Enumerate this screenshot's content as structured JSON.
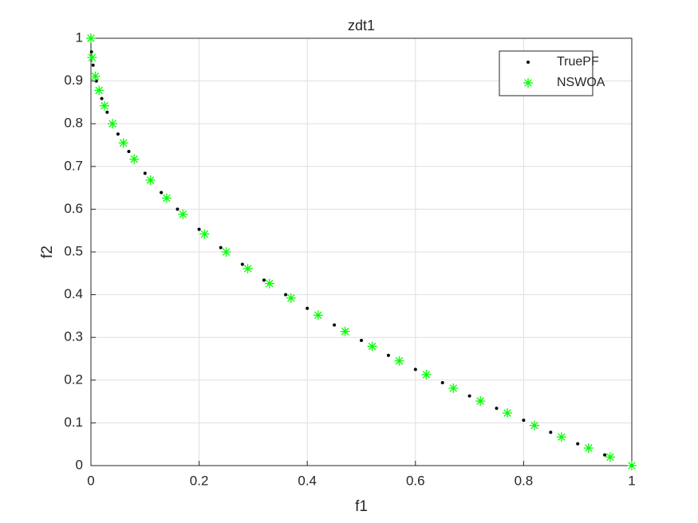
{
  "chart_data": {
    "type": "scatter",
    "title": "zdt1",
    "x_label": "f1",
    "y_label": "f2",
    "xlim": [
      0,
      1
    ],
    "ylim": [
      0,
      1
    ],
    "xticks": [
      0,
      0.2,
      0.4,
      0.6,
      0.8,
      1
    ],
    "yticks": [
      0,
      0.1,
      0.2,
      0.3,
      0.4,
      0.5,
      0.6,
      0.7,
      0.8,
      0.9,
      1
    ],
    "grid": true,
    "legend": "northeast",
    "series": [
      {
        "name": "TruePF",
        "color": "#000000",
        "marker": "dot",
        "x": [
          0.001,
          0.004,
          0.01,
          0.02,
          0.03,
          0.05,
          0.07,
          0.1,
          0.13,
          0.16,
          0.2,
          0.24,
          0.28,
          0.32,
          0.36,
          0.4,
          0.45,
          0.5,
          0.55,
          0.6,
          0.65,
          0.7,
          0.75,
          0.8,
          0.85,
          0.9,
          0.95,
          1
        ],
        "values": [
          0.968,
          0.937,
          0.9,
          0.859,
          0.827,
          0.776,
          0.735,
          0.684,
          0.639,
          0.6,
          0.553,
          0.51,
          0.471,
          0.434,
          0.4,
          0.368,
          0.329,
          0.293,
          0.258,
          0.225,
          0.194,
          0.163,
          0.134,
          0.106,
          0.078,
          0.051,
          0.025,
          0
        ]
      },
      {
        "name": "NSWOA",
        "color": "#00ff00",
        "marker": "asterisk",
        "x": [
          0,
          0.002,
          0.008,
          0.015,
          0.025,
          0.04,
          0.06,
          0.08,
          0.11,
          0.14,
          0.17,
          0.21,
          0.25,
          0.29,
          0.33,
          0.37,
          0.42,
          0.47,
          0.52,
          0.57,
          0.62,
          0.67,
          0.72,
          0.77,
          0.82,
          0.87,
          0.92,
          0.96,
          1
        ],
        "values": [
          1,
          0.955,
          0.911,
          0.878,
          0.842,
          0.8,
          0.755,
          0.717,
          0.668,
          0.626,
          0.588,
          0.542,
          0.5,
          0.461,
          0.426,
          0.392,
          0.352,
          0.314,
          0.279,
          0.245,
          0.213,
          0.181,
          0.151,
          0.123,
          0.094,
          0.067,
          0.041,
          0.02,
          0
        ]
      }
    ]
  }
}
